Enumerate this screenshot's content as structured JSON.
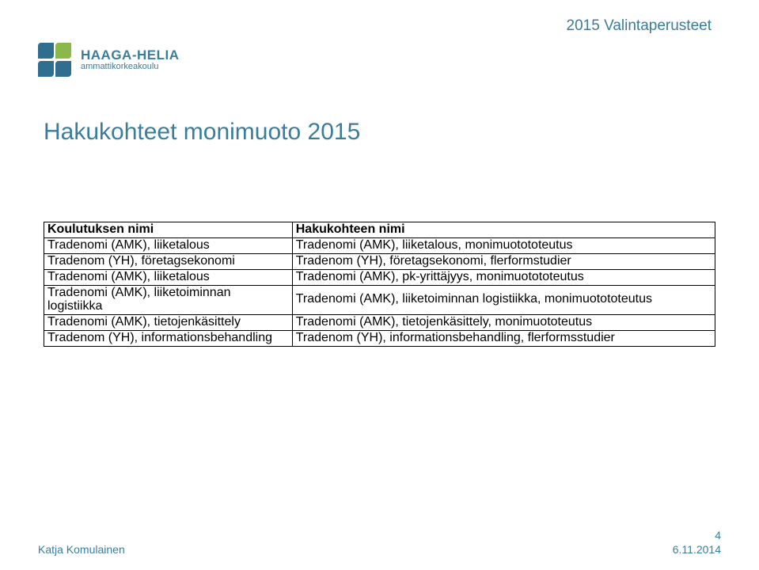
{
  "header": {
    "top_right": "2015 Valintaperusteet",
    "top_right_color": "#3a7d9a",
    "logo": {
      "brand": "HAAGA-HELIA",
      "sub": "ammattikorkeakoulu",
      "brand_color": "#3a7d9a",
      "colors": [
        "#2f6e8f",
        "#8bb84a",
        "#2f6e8f",
        "#2f6e8f"
      ]
    }
  },
  "title": {
    "text": "Hakukohteet monimuoto 2015",
    "color": "#3a7d9a"
  },
  "table": {
    "columns": [
      "Koulutuksen nimi",
      "Hakukohteen nimi"
    ],
    "rows": [
      [
        "Tradenomi (AMK), liiketalous",
        "Tradenomi (AMK), liiketalous, monimuotototeutus"
      ],
      [
        "Tradenom (YH), företagsekonomi",
        "Tradenom (YH), företagsekonomi, flerformstudier"
      ],
      [
        "Tradenomi (AMK), liiketalous",
        "Tradenomi (AMK), pk-yrittäjyys, monimuotototeutus"
      ],
      [
        "Tradenomi (AMK), liiketoiminnan logistiikka",
        "Tradenomi (AMK), liiketoiminnan logistiikka, monimuotototeutus"
      ],
      [
        "Tradenomi (AMK), tietojenkäsittely",
        "Tradenomi (AMK), tietojenkäsittely, monimuototeutus"
      ],
      [
        "Tradenom (YH), informationsbehandling",
        "Tradenom (YH), informationsbehandling, flerformsstudier"
      ]
    ],
    "col_widths": [
      "37%",
      "63%"
    ],
    "border_color": "#000000",
    "font_size": 16
  },
  "footer": {
    "author": "Katja Komulainen",
    "date": "6.11.2014",
    "page": "4",
    "author_color": "#3a7d9a",
    "date_color": "#3a7d9a"
  }
}
